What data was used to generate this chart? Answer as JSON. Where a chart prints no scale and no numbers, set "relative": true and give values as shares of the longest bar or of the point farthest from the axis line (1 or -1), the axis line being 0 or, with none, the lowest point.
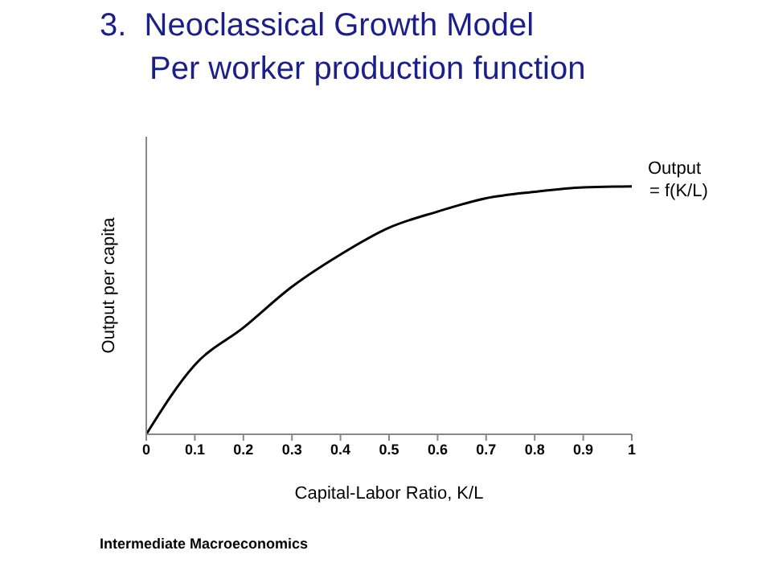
{
  "chart_data": {
    "type": "line",
    "title": "3.  Neoclassical Growth Model",
    "subtitle": "Per worker production function",
    "xlabel": "Capital-Labor Ratio, K/L",
    "ylabel": "Output per capita",
    "relative": true,
    "x": [
      0,
      0.1,
      0.2,
      0.3,
      0.4,
      0.5,
      0.6,
      0.7,
      0.8,
      0.9,
      1
    ],
    "series": [
      {
        "color": "#000000",
        "values": [
          0,
          0.28,
          0.43,
          0.595,
          0.725,
          0.833,
          0.898,
          0.952,
          0.978,
          0.996,
          1
        ]
      }
    ],
    "xlim": [
      0,
      1
    ],
    "xticks": [
      0,
      0.1,
      0.2,
      0.3,
      0.4,
      0.5,
      0.6,
      0.7,
      0.8,
      0.9,
      1
    ],
    "grid": false,
    "legend": false,
    "marker": "none",
    "line_style": "solid",
    "annotations": [
      {
        "text": "Output\n= f(K/L)",
        "x": 1,
        "y": 1
      },
      "Intermediate Macroeconomics"
    ]
  }
}
